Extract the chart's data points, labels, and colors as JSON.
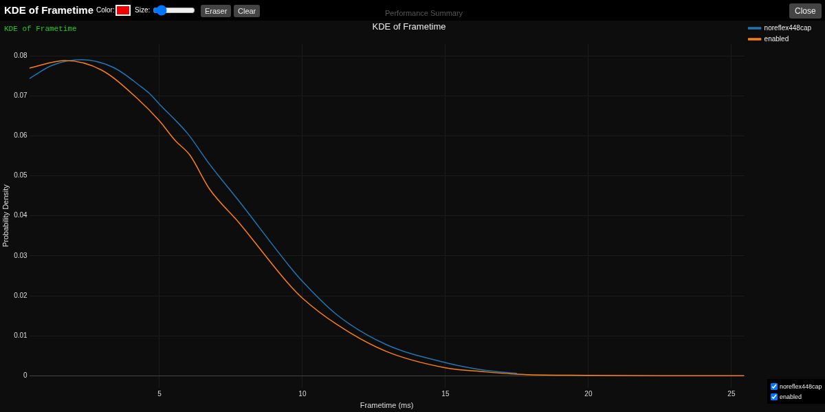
{
  "chart_data": {
    "type": "line",
    "title": "KDE of Frametime",
    "xlabel": "Frametime (ms)",
    "ylabel": "Probability Density",
    "annotations": [
      "KDE of Frametime",
      "Color:",
      "Size:",
      "Eraser",
      "Clear",
      "Close",
      "Performance Summary",
      "KDE of Frametime"
    ],
    "series": [
      {
        "name": "noreflex448cap",
        "color": "#1f77b4",
        "x": [
          0.45,
          1.25,
          2.28,
          3.41,
          4.35,
          4.69,
          5,
          5.98,
          6.75,
          7.79,
          9.5,
          10,
          11.23,
          12.93,
          15,
          16.37,
          17.5
        ],
        "values": [
          0.0743,
          0.0776,
          0.079,
          0.077,
          0.0723,
          0.0703,
          0.0679,
          0.0606,
          0.0529,
          0.0436,
          0.0278,
          0.0236,
          0.0151,
          0.0078,
          0.0033,
          0.0014,
          0.0006
        ]
      },
      {
        "name": "enabled",
        "color": "#ff7f0e",
        "x": [
          0.45,
          1.69,
          2.98,
          4.26,
          5,
          5.55,
          6.06,
          6.75,
          7.79,
          9.5,
          10,
          11.23,
          12.93,
          15,
          16.37,
          17.5,
          20,
          22.5,
          25.45
        ],
        "values": [
          0.0769,
          0.0788,
          0.0764,
          0.0691,
          0.0637,
          0.0588,
          0.0552,
          0.0467,
          0.0382,
          0.0231,
          0.0194,
          0.0127,
          0.0061,
          0.002,
          0.001,
          0.0004,
          0.0001,
          0,
          0
        ]
      }
    ],
    "xlim": [
      0.45,
      25.45
    ],
    "xticks": [
      5,
      10,
      15,
      20,
      25
    ],
    "ylim": [
      -0.003,
      0.083
    ],
    "yticks": [
      0,
      0.01,
      0.02,
      0.03,
      0.04,
      0.05,
      0.06,
      0.07,
      0.08
    ],
    "grid": true,
    "legend": "top right",
    "marker": "none",
    "line_style": "solid"
  }
}
